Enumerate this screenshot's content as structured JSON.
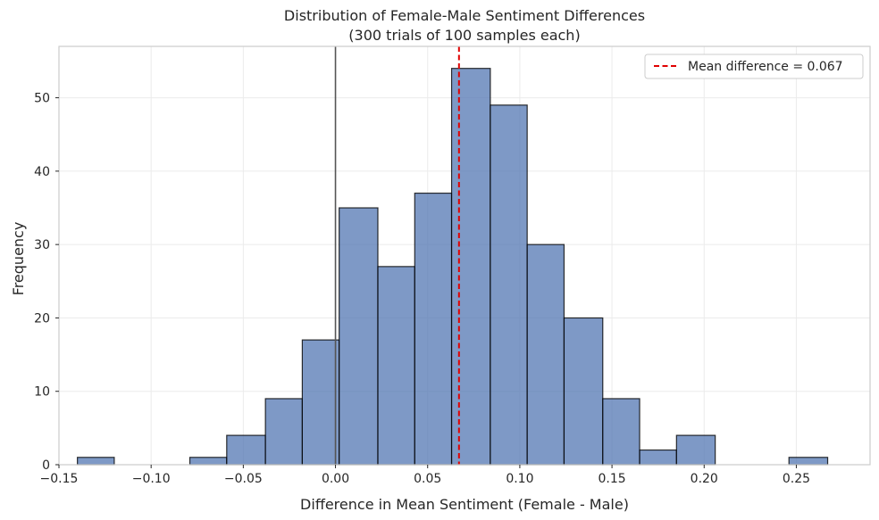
{
  "chart_data": {
    "type": "bar",
    "title": "Distribution of Female-Male Sentiment Differences",
    "subtitle": "(300 trials of 100 samples each)",
    "xlabel": "Difference in Mean Sentiment (Female - Male)",
    "ylabel": "Frequency",
    "xlim": [
      -0.15,
      0.29
    ],
    "ylim": [
      0,
      57
    ],
    "xticks": [
      "−0.15",
      "−0.10",
      "−0.05",
      "0.00",
      "0.05",
      "0.10",
      "0.15",
      "0.20",
      "0.25"
    ],
    "xtick_values": [
      -0.15,
      -0.1,
      -0.05,
      0.0,
      0.05,
      0.1,
      0.15,
      0.2,
      0.25
    ],
    "yticks": [
      "0",
      "10",
      "20",
      "30",
      "40",
      "50"
    ],
    "ytick_values": [
      0,
      10,
      20,
      30,
      40,
      50
    ],
    "bins": [
      {
        "x0": -0.14,
        "x1": -0.12,
        "count": 1
      },
      {
        "x0": -0.12,
        "x1": -0.099,
        "count": 0
      },
      {
        "x0": -0.099,
        "x1": -0.079,
        "count": 0
      },
      {
        "x0": -0.079,
        "x1": -0.059,
        "count": 1
      },
      {
        "x0": -0.059,
        "x1": -0.038,
        "count": 4
      },
      {
        "x0": -0.038,
        "x1": -0.018,
        "count": 9
      },
      {
        "x0": -0.018,
        "x1": 0.002,
        "count": 17
      },
      {
        "x0": 0.002,
        "x1": 0.023,
        "count": 35
      },
      {
        "x0": 0.023,
        "x1": 0.043,
        "count": 27
      },
      {
        "x0": 0.043,
        "x1": 0.063,
        "count": 37
      },
      {
        "x0": 0.063,
        "x1": 0.084,
        "count": 54
      },
      {
        "x0": 0.084,
        "x1": 0.104,
        "count": 49
      },
      {
        "x0": 0.104,
        "x1": 0.124,
        "count": 30
      },
      {
        "x0": 0.124,
        "x1": 0.145,
        "count": 20
      },
      {
        "x0": 0.145,
        "x1": 0.165,
        "count": 9
      },
      {
        "x0": 0.165,
        "x1": 0.185,
        "count": 2
      },
      {
        "x0": 0.185,
        "x1": 0.206,
        "count": 4
      },
      {
        "x0": 0.206,
        "x1": 0.226,
        "count": 0
      },
      {
        "x0": 0.226,
        "x1": 0.246,
        "count": 0
      },
      {
        "x0": 0.246,
        "x1": 0.267,
        "count": 1
      }
    ],
    "reference_line_x": 0.0,
    "mean_line_x": 0.067,
    "legend": {
      "label": "Mean difference = 0.067",
      "placement": "top-right"
    },
    "grid": true,
    "colors": {
      "bar_fill": "#4c72b0",
      "bar_edge": "#000000",
      "mean_line": "#e00000",
      "reference_line": "#555555",
      "grid": "#ebebeb",
      "spine": "#cccccc"
    }
  }
}
